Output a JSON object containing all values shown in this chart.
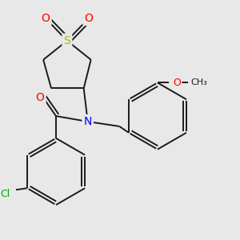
{
  "background_color": "#e8e8e8",
  "bond_color": "#1a1a1a",
  "atom_colors": {
    "S": "#b8b800",
    "O": "#ff0000",
    "N": "#0000ff",
    "Cl": "#00aa00",
    "C": "#1a1a1a"
  },
  "figsize": [
    3.0,
    3.0
  ],
  "dpi": 100,
  "lw": 1.4,
  "ring_lw": 1.4
}
